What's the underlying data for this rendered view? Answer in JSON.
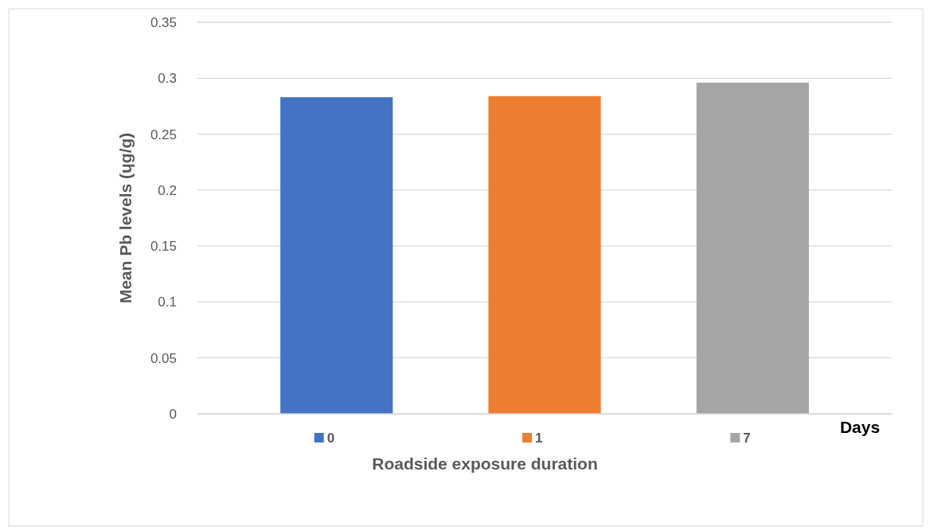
{
  "chart_data": {
    "type": "bar",
    "categories": [
      null
    ],
    "series": [
      {
        "name": "0",
        "color": "#4472c4",
        "values": [
          0.283
        ]
      },
      {
        "name": "1",
        "color": "#ed7d31",
        "values": [
          0.284
        ]
      },
      {
        "name": "7",
        "color": "#a5a5a5",
        "values": [
          0.296
        ]
      }
    ],
    "ylabel": "Mean Pb levels  (ɥg/g)",
    "xlabel": "Roadside exposure  duration",
    "annotations": [
      "Days"
    ],
    "ylim": [
      0,
      0.35
    ],
    "yticks": [
      0,
      0.05,
      0.1,
      0.15,
      0.2,
      0.25,
      0.3,
      0.35
    ],
    "grid": "y",
    "legend": "bottom"
  }
}
